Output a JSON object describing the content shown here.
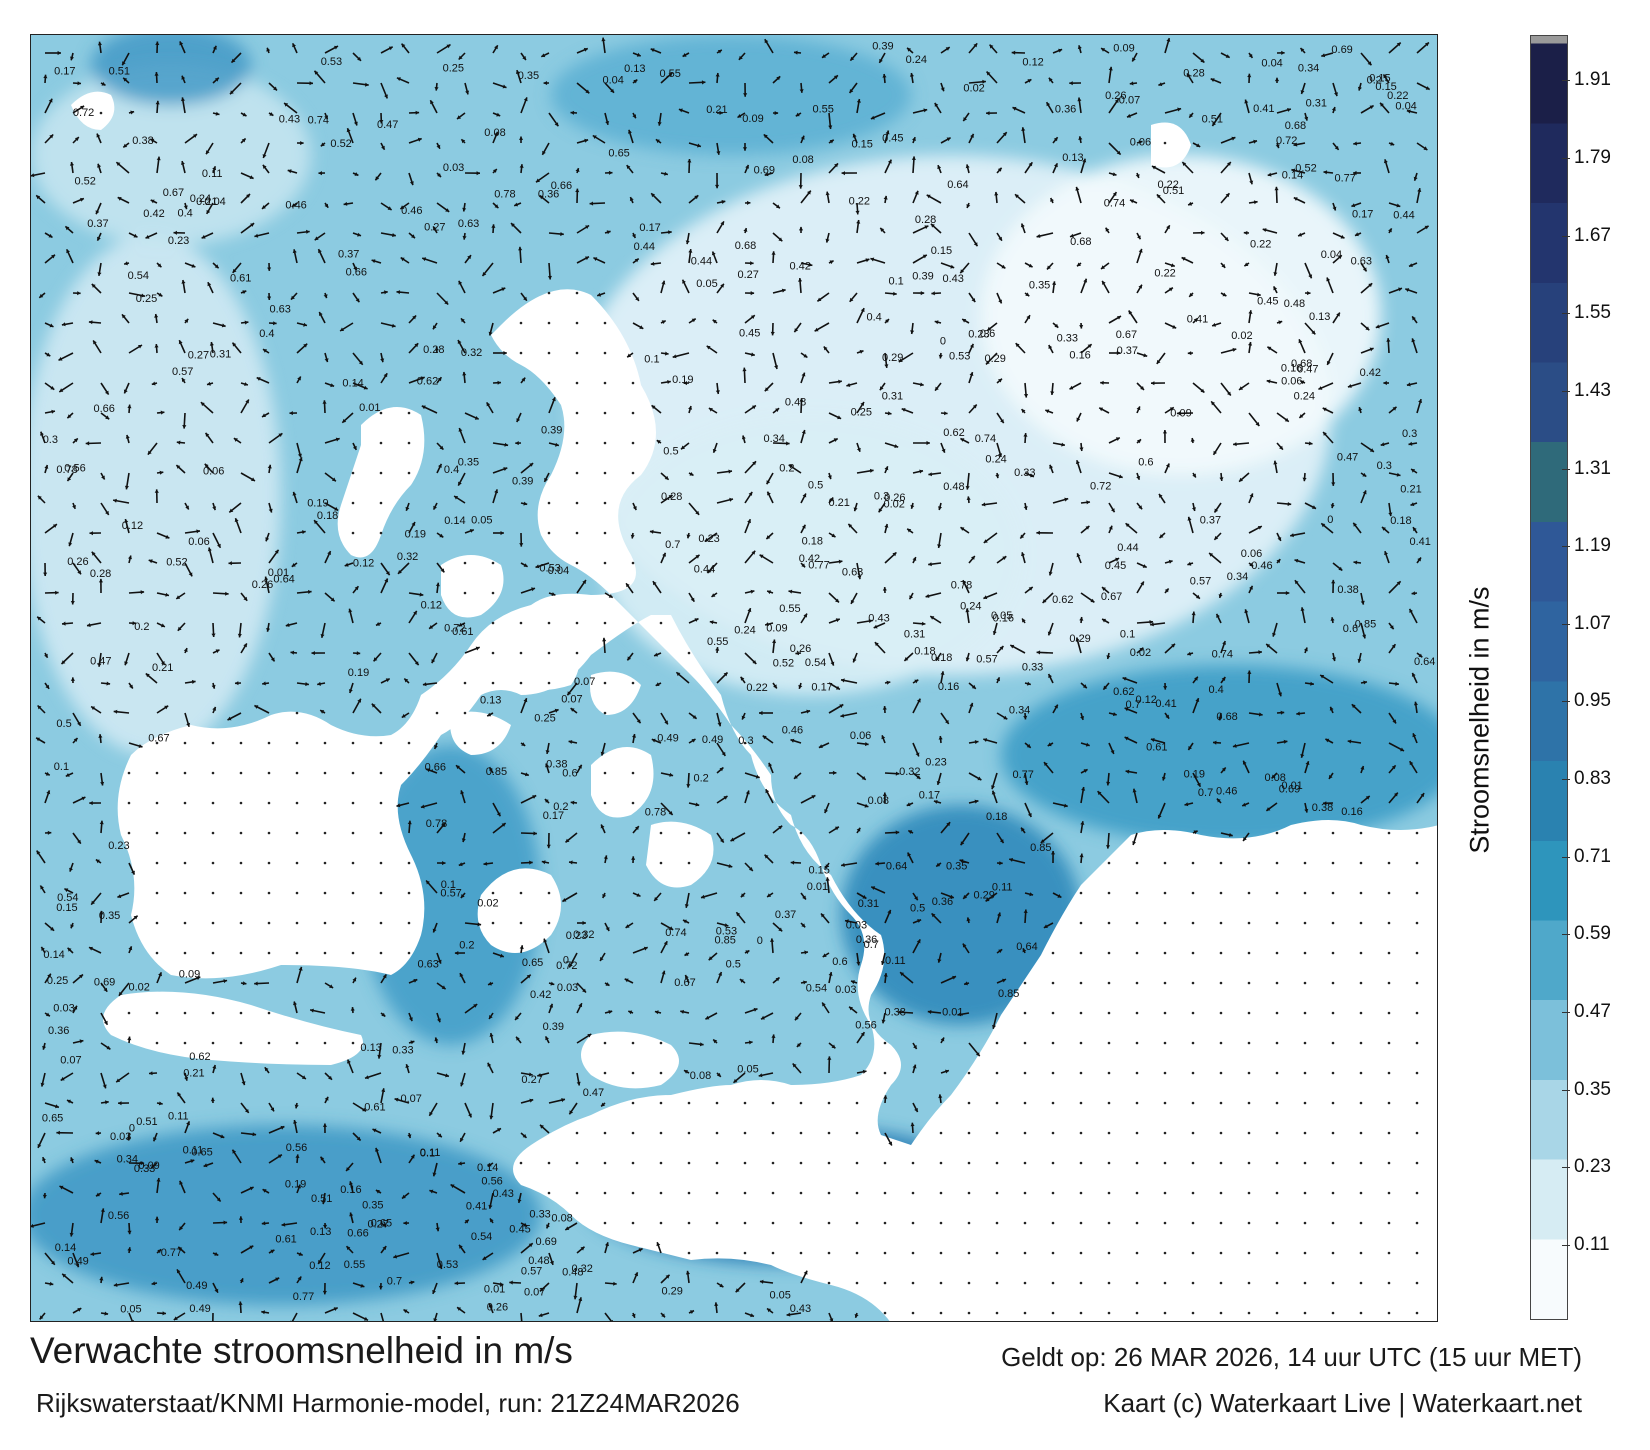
{
  "title": "Verwachte stroomsnelheid in m/s",
  "subtitle": "Rijkswaterstaat/KNMI Harmonie-model, run: 21Z24MAR2026",
  "valid_time": "Geldt op: 26 MAR 2026, 14 uur UTC (15 uur MET)",
  "credit": "Kaart (c) Waterkaart Live | Waterkaart.net",
  "colorbar": {
    "label": "Stroomsnelheid in m/s",
    "ticks": [
      "0.11",
      "0.23",
      "0.35",
      "0.47",
      "0.59",
      "0.71",
      "0.83",
      "0.95",
      "1.07",
      "1.19",
      "1.31",
      "1.43",
      "1.55",
      "1.67",
      "1.79",
      "1.91"
    ],
    "colors": [
      "#f7fbfd",
      "#d6ecf3",
      "#a9d6e7",
      "#7cc0da",
      "#4fa8ca",
      "#2e95bc",
      "#2a82b0",
      "#2e73a8",
      "#2f64a0",
      "#2f5897",
      "#2f6a7a",
      "#2b4d86",
      "#27417b",
      "#23356e",
      "#1f2a5d",
      "#1b1f48"
    ]
  },
  "sample_values": [
    "0.12",
    "0.08",
    "0.09",
    "0.15",
    "0.26",
    "0.24",
    "0.22",
    "0.23",
    "0.19",
    "0.35",
    "0.33",
    "0.13",
    "0.04",
    "0.02",
    "0.17",
    "0.14",
    "0.11",
    "0.18",
    "0.2",
    "0.21",
    "0.07",
    "0.06",
    "0.05",
    "0.03",
    "0.01",
    "0.1",
    "0.16",
    "0.3",
    "0.28",
    "0.27",
    "0.25",
    "0.36",
    "0.38",
    "0.39",
    "0.4",
    "0.42",
    "0.45",
    "0.47",
    "0.49",
    "0.5",
    "0.52",
    "0.55",
    "0.57",
    "0.6",
    "0.64",
    "0.65",
    "0.68",
    "0.72",
    "0.74",
    "0.77",
    "0.78",
    "0.85",
    "0.31",
    "0.34",
    "0.37",
    "0.43",
    "0.44",
    "0.46",
    "0.48",
    "0.51",
    "0.53",
    "0.54",
    "0.56",
    "0.61",
    "0.62",
    "0.63",
    "0.66",
    "0.67",
    "0.69",
    "0.7",
    "0.29",
    "0.32",
    "0.41",
    "0"
  ]
}
